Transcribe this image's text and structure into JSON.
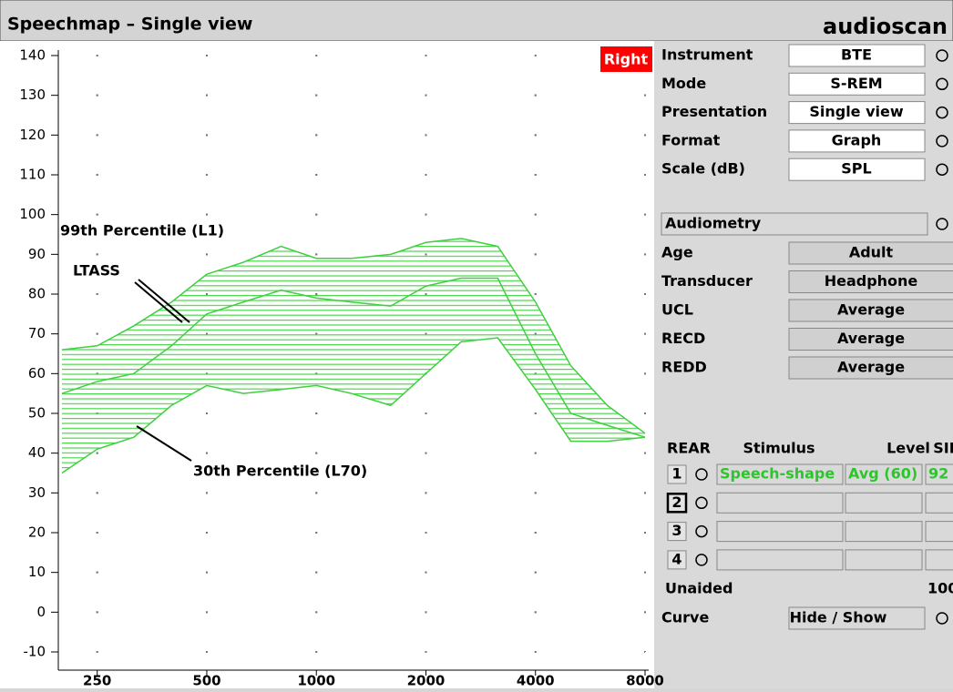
{
  "header": {
    "title": "Speechmap – Single view",
    "brand": "audioscan"
  },
  "chart_data": {
    "type": "band",
    "ear": "Right",
    "xscale": "log",
    "x": [
      200,
      250,
      315,
      400,
      500,
      630,
      800,
      1000,
      1250,
      1600,
      2000,
      2500,
      3150,
      4000,
      5000,
      6300,
      8000
    ],
    "series": [
      {
        "name": "99th Percentile (L1)",
        "color": "#3fcf3f",
        "values": [
          66,
          67,
          72,
          78,
          85,
          88,
          92,
          89,
          89,
          90,
          93,
          94,
          92,
          78,
          62,
          52,
          45
        ]
      },
      {
        "name": "LTASS",
        "color": "#3fcf3f",
        "values": [
          55,
          58,
          60,
          67,
          75,
          78,
          81,
          79,
          78,
          77,
          82,
          84,
          84,
          65,
          50,
          47,
          44
        ]
      },
      {
        "name": "30th Percentile (L70)",
        "color": "#3fcf3f",
        "values": [
          35,
          41,
          44,
          52,
          57,
          55,
          56,
          57,
          55,
          52,
          60,
          68,
          69,
          56,
          43,
          43,
          44
        ]
      }
    ],
    "xlim": [
      200,
      8000
    ],
    "xticks": [
      250,
      500,
      1000,
      2000,
      4000,
      8000
    ],
    "ylim": [
      -10,
      140
    ],
    "yticks": [
      -10,
      0,
      10,
      20,
      30,
      40,
      50,
      60,
      70,
      80,
      90,
      100,
      110,
      120,
      130,
      140
    ],
    "grid": true
  },
  "panel": {
    "settings": [
      {
        "label": "Instrument",
        "value": "BTE"
      },
      {
        "label": "Mode",
        "value": "S-REM"
      },
      {
        "label": "Presentation",
        "value": "Single view"
      },
      {
        "label": "Format",
        "value": "Graph"
      },
      {
        "label": "Scale (dB)",
        "value": "SPL"
      }
    ],
    "audiometry": {
      "title": "Audiometry",
      "rows": [
        {
          "label": "Age",
          "value": "Adult"
        },
        {
          "label": "Transducer",
          "value": "Headphone"
        },
        {
          "label": "UCL",
          "value": "Average"
        },
        {
          "label": "RECD",
          "value": "Average"
        },
        {
          "label": "REDD",
          "value": "Average"
        }
      ]
    },
    "rear": {
      "headers": [
        "REAR",
        "Stimulus",
        "Level",
        "SII"
      ],
      "rows": [
        {
          "id": "1",
          "stimulus": "Speech-shape",
          "level": "Avg (60)",
          "sii": 92
        },
        {
          "id": "2"
        },
        {
          "id": "3"
        },
        {
          "id": "4"
        }
      ]
    },
    "unaided": {
      "label": "Unaided",
      "value": 100
    },
    "curve": {
      "label": "Curve",
      "value": "Hide / Show"
    }
  }
}
